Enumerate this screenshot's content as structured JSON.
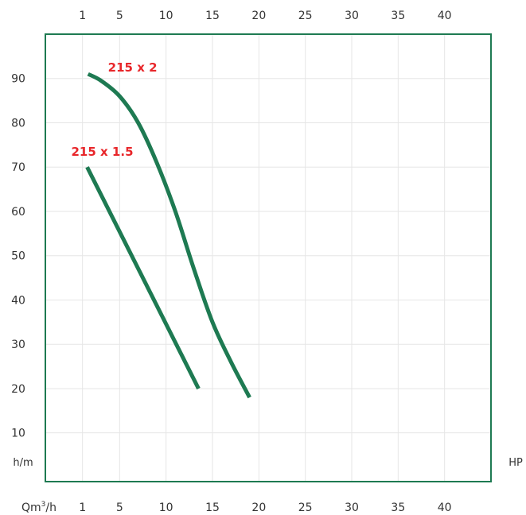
{
  "chart_data": {
    "type": "line",
    "x_ticks": [
      "1",
      "5",
      "10",
      "15",
      "20",
      "25",
      "30",
      "35",
      "40"
    ],
    "y_ticks": [
      "10",
      "20",
      "30",
      "40",
      "50",
      "60",
      "70",
      "80",
      "90"
    ],
    "xlim": [
      -3,
      45
    ],
    "ylim": [
      -1,
      100
    ],
    "x_unit_label": "Qm3/h",
    "y_unit_label": "h/m",
    "right_unit_label": "HP",
    "grid": true,
    "colors": {
      "line": "#1e7a52",
      "annotation": "#e8262a",
      "frame": "#1e7a52",
      "grid": "#e6e6e6"
    },
    "series": [
      {
        "name": "215 x 2",
        "x": [
          1.6,
          3,
          5,
          7,
          9,
          11,
          13,
          15,
          17,
          19
        ],
        "y": [
          91,
          89.5,
          86,
          80,
          71,
          60,
          47,
          35,
          26,
          18
        ]
      },
      {
        "name": "215 x 1.5",
        "x": [
          1.5,
          13.5
        ],
        "y": [
          70,
          20
        ]
      }
    ]
  }
}
